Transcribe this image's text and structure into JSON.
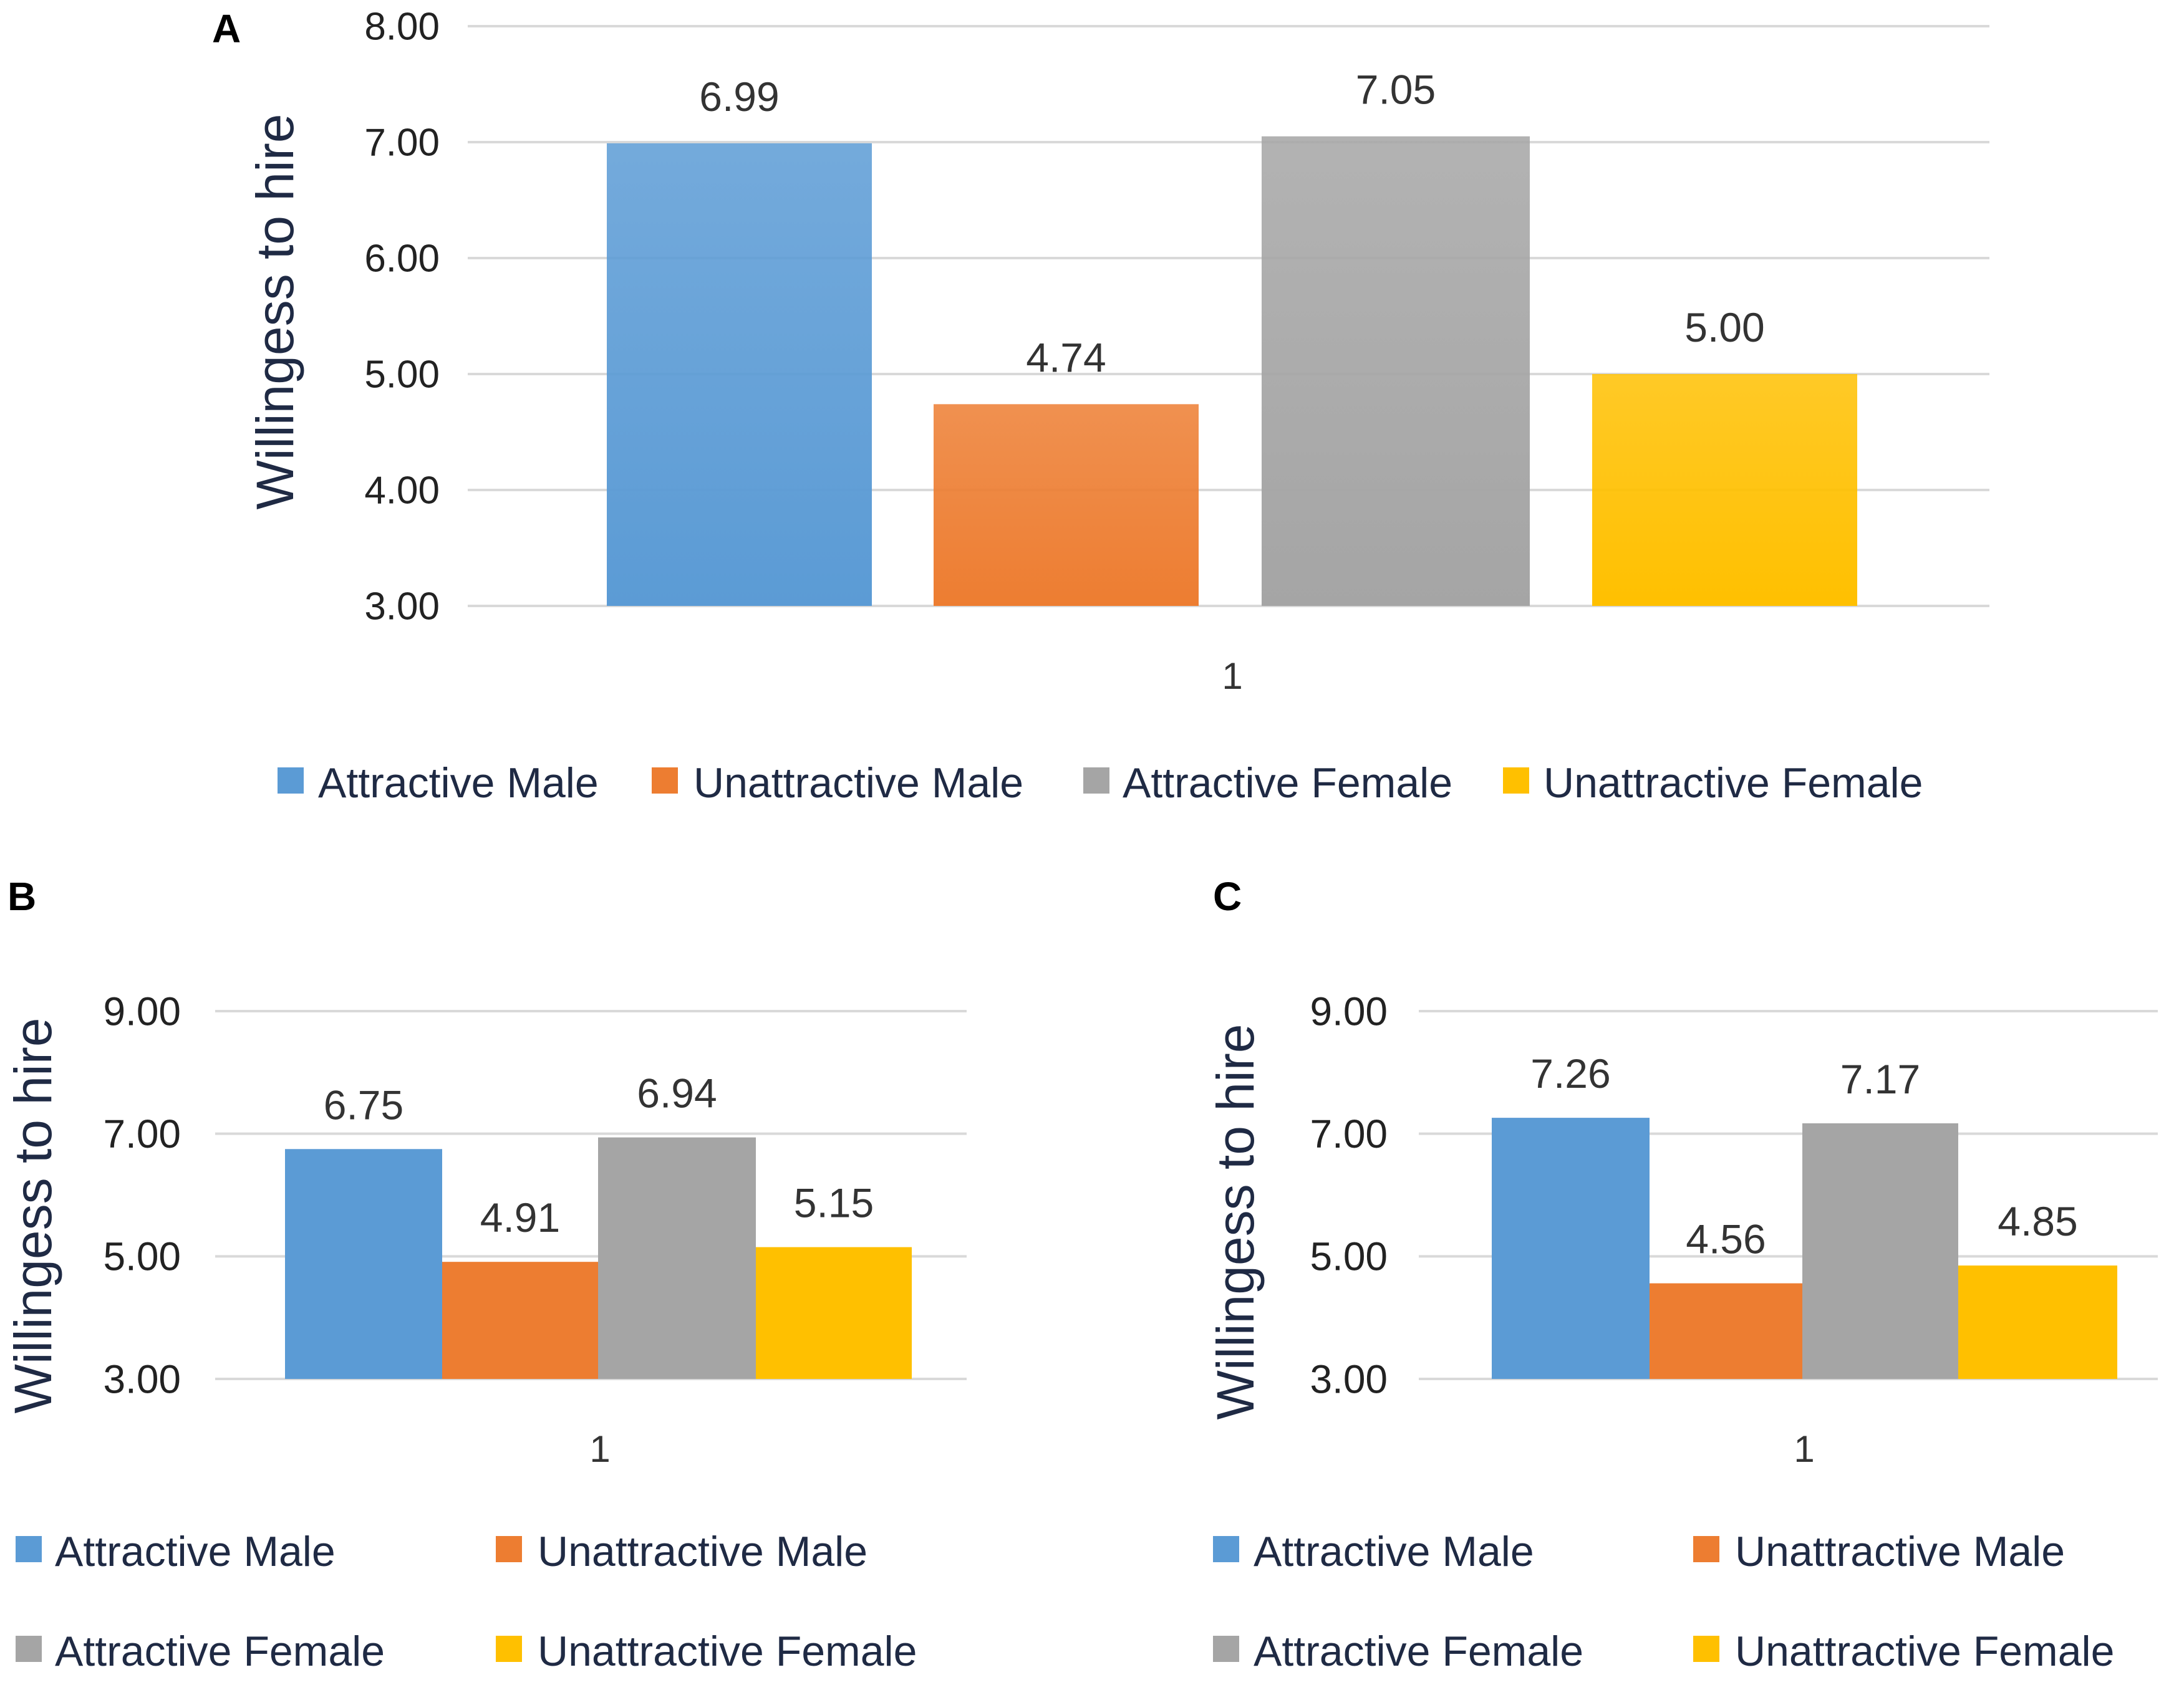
{
  "colors": {
    "attractive_male": "#5b9bd5",
    "unattractive_male": "#ed7d31",
    "attractive_female": "#a5a5a5",
    "unattractive_female": "#ffc000",
    "grid": "#d9d9d9"
  },
  "legend_labels": [
    "Attractive Male",
    "Unattractive Male",
    "Attractive Female",
    "Unattractive Female"
  ],
  "chart_data": [
    {
      "panel": "A",
      "type": "bar",
      "title": "",
      "xlabel": "",
      "ylabel": "Willingess to hire",
      "categories": [
        "1"
      ],
      "series": [
        {
          "name": "Attractive Male",
          "values": [
            6.99
          ],
          "label": "6.99"
        },
        {
          "name": "Unattractive Male",
          "values": [
            4.74
          ],
          "label": "4.74"
        },
        {
          "name": "Attractive Female",
          "values": [
            7.05
          ],
          "label": "7.05"
        },
        {
          "name": "Unattractive Female",
          "values": [
            5.0
          ],
          "label": "5.00"
        }
      ],
      "ylim": [
        3.0,
        8.0
      ],
      "yticks": [
        "3.00",
        "4.00",
        "5.00",
        "6.00",
        "7.00",
        "8.00"
      ],
      "grid": true,
      "legend_position": "bottom"
    },
    {
      "panel": "B",
      "type": "bar",
      "title": "",
      "xlabel": "",
      "ylabel": "Willingess to hire",
      "categories": [
        "1"
      ],
      "series": [
        {
          "name": "Attractive Male",
          "values": [
            6.75
          ],
          "label": "6.75"
        },
        {
          "name": "Unattractive Male",
          "values": [
            4.91
          ],
          "label": "4.91"
        },
        {
          "name": "Attractive Female",
          "values": [
            6.94
          ],
          "label": "6.94"
        },
        {
          "name": "Unattractive Female",
          "values": [
            5.15
          ],
          "label": "5.15"
        }
      ],
      "ylim": [
        3.0,
        9.0
      ],
      "yticks": [
        "3.00",
        "5.00",
        "7.00",
        "9.00"
      ],
      "grid": true,
      "legend_position": "bottom"
    },
    {
      "panel": "C",
      "type": "bar",
      "title": "",
      "xlabel": "",
      "ylabel": "Willingess to hire",
      "categories": [
        "1"
      ],
      "series": [
        {
          "name": "Attractive Male",
          "values": [
            7.26
          ],
          "label": "7.26"
        },
        {
          "name": "Unattractive Male",
          "values": [
            4.56
          ],
          "label": "4.56"
        },
        {
          "name": "Attractive Female",
          "values": [
            7.17
          ],
          "label": "7.17"
        },
        {
          "name": "Unattractive Female",
          "values": [
            4.85
          ],
          "label": "4.85"
        }
      ],
      "ylim": [
        3.0,
        9.0
      ],
      "yticks": [
        "3.00",
        "5.00",
        "7.00",
        "9.00"
      ],
      "grid": true,
      "legend_position": "bottom"
    }
  ]
}
